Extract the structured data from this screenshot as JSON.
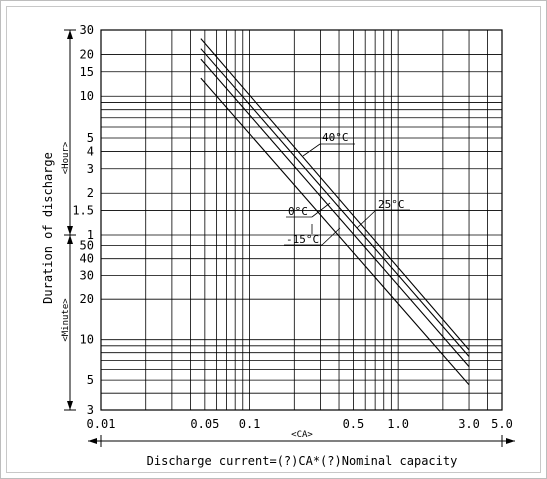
{
  "chart_data": {
    "type": "line",
    "title": "",
    "x_scale": "log",
    "xlim": [
      0.01,
      5.0
    ],
    "x_ticks": [
      "0.01",
      "0.05",
      "0.1",
      "0.5",
      "1.0",
      "3.0",
      "5.0"
    ],
    "x_unit_label": "<CA>",
    "xlabel": "Discharge current=(?)CA*(?)Nominal capacity",
    "ylabel": "Duration of discharge",
    "y_upper": {
      "unit_label": "<Hour>",
      "scale": "log",
      "ylim": [
        1,
        30
      ],
      "ticks": [
        "30",
        "20",
        "15",
        "10",
        "5",
        "4",
        "3",
        "2",
        "1.5",
        "1"
      ]
    },
    "y_lower": {
      "unit_label": "<Minute>",
      "scale": "log",
      "ylim": [
        3,
        60
      ],
      "ticks": [
        "50",
        "40",
        "30",
        "20",
        "10",
        "5",
        "3"
      ]
    },
    "grid": true,
    "series": [
      {
        "name": "40°C",
        "points": [
          [
            0.047,
            26
          ],
          [
            3.0,
            0.14
          ]
        ]
      },
      {
        "name": "25°C",
        "points": [
          [
            0.047,
            22
          ],
          [
            3.0,
            0.125
          ]
        ]
      },
      {
        "name": "0°C",
        "points": [
          [
            0.047,
            18.5
          ],
          [
            3.0,
            0.105
          ]
        ]
      },
      {
        "name": "-15°C",
        "points": [
          [
            0.047,
            13.5
          ],
          [
            3.0,
            0.077
          ]
        ]
      }
    ]
  }
}
